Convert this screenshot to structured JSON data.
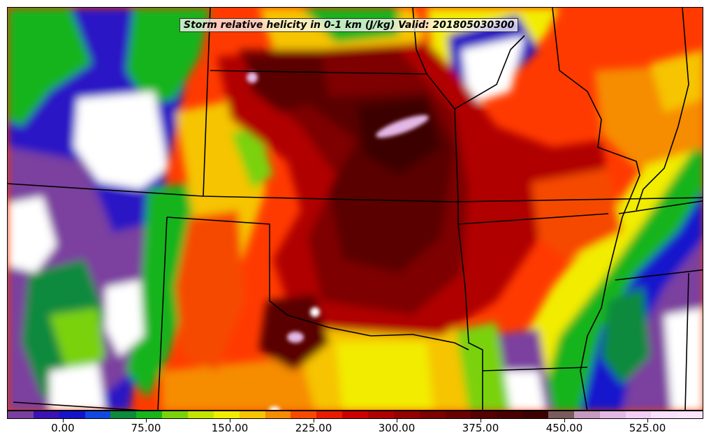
{
  "title": "Storm relative helicity in 0-1 km (J/kg) Valid: 201805030300",
  "colorbar": {
    "colors": [
      "#7b3f9f",
      "#3a12b5",
      "#1414cc",
      "#1048e0",
      "#0e8a3c",
      "#18b41a",
      "#7ad20a",
      "#c4e400",
      "#f2ec00",
      "#f6c400",
      "#f68c00",
      "#f64a00",
      "#e81c00",
      "#cc0000",
      "#b00000",
      "#960000",
      "#7e0000",
      "#6a0000",
      "#560000",
      "#4a0000",
      "#3c0000",
      "#7a5a5a",
      "#c89ac0",
      "#e4b8e6",
      "#f4ccf4",
      "#fae0fa",
      "#fce4fc"
    ],
    "ticks": [
      {
        "label": "0.00",
        "frac": 0.08
      },
      {
        "label": "75.00",
        "frac": 0.2
      },
      {
        "label": "150.00",
        "frac": 0.32
      },
      {
        "label": "225.00",
        "frac": 0.44
      },
      {
        "label": "300.00",
        "frac": 0.56
      },
      {
        "label": "375.00",
        "frac": 0.68
      },
      {
        "label": "450.00",
        "frac": 0.8
      },
      {
        "label": "525.00",
        "frac": 0.92
      }
    ]
  }
}
